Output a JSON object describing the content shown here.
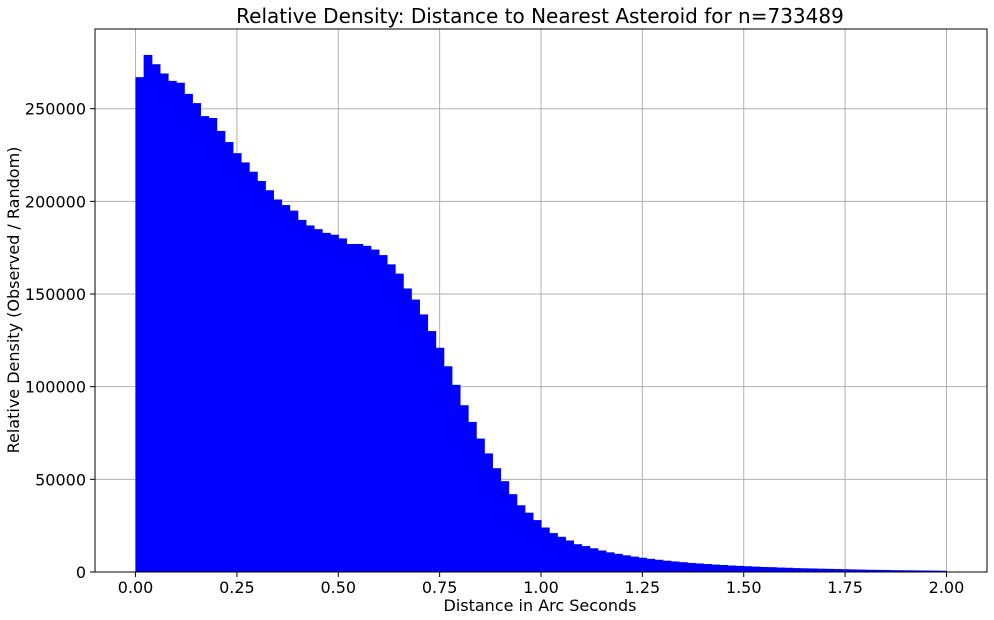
{
  "chart_data": {
    "type": "bar",
    "title": "Relative Density: Distance to Nearest Asteroid for n=733489",
    "xlabel": "Distance in Arc Seconds",
    "ylabel": "Relative Density (Observed / Random)",
    "xlim": [
      -0.1,
      2.1
    ],
    "ylim": [
      0,
      293000
    ],
    "xticks": [
      "0.00",
      "0.25",
      "0.50",
      "0.75",
      "1.00",
      "1.25",
      "1.50",
      "1.75",
      "2.00"
    ],
    "yticks": [
      "0",
      "50000",
      "100000",
      "150000",
      "200000",
      "250000"
    ],
    "grid": true,
    "bar_color": "#0000ff",
    "bin_start": 0.0,
    "bin_width": 0.02,
    "values": [
      267000,
      279000,
      274000,
      269000,
      265000,
      264000,
      258000,
      253000,
      246000,
      245000,
      238000,
      232000,
      226000,
      221000,
      216000,
      211000,
      206000,
      201000,
      198000,
      195000,
      190000,
      187000,
      185000,
      183000,
      182000,
      180000,
      177000,
      177000,
      176000,
      174000,
      171000,
      166000,
      161000,
      153000,
      147000,
      139000,
      130000,
      121000,
      111000,
      101000,
      90000,
      81000,
      72000,
      64000,
      56000,
      49000,
      42000,
      36000,
      32000,
      28000,
      24000,
      21000,
      19000,
      17000,
      15000,
      14000,
      12800,
      11600,
      10600,
      9800,
      9000,
      8300,
      7700,
      7100,
      6600,
      6100,
      5700,
      5300,
      4900,
      4600,
      4300,
      4000,
      3800,
      3500,
      3300,
      3100,
      2900,
      2700,
      2600,
      2400,
      2300,
      2100,
      2000,
      1900,
      1800,
      1700,
      1600,
      1500,
      1400,
      1300,
      1200,
      1150,
      1100,
      1000,
      950,
      900,
      850,
      800,
      750,
      700
    ]
  }
}
